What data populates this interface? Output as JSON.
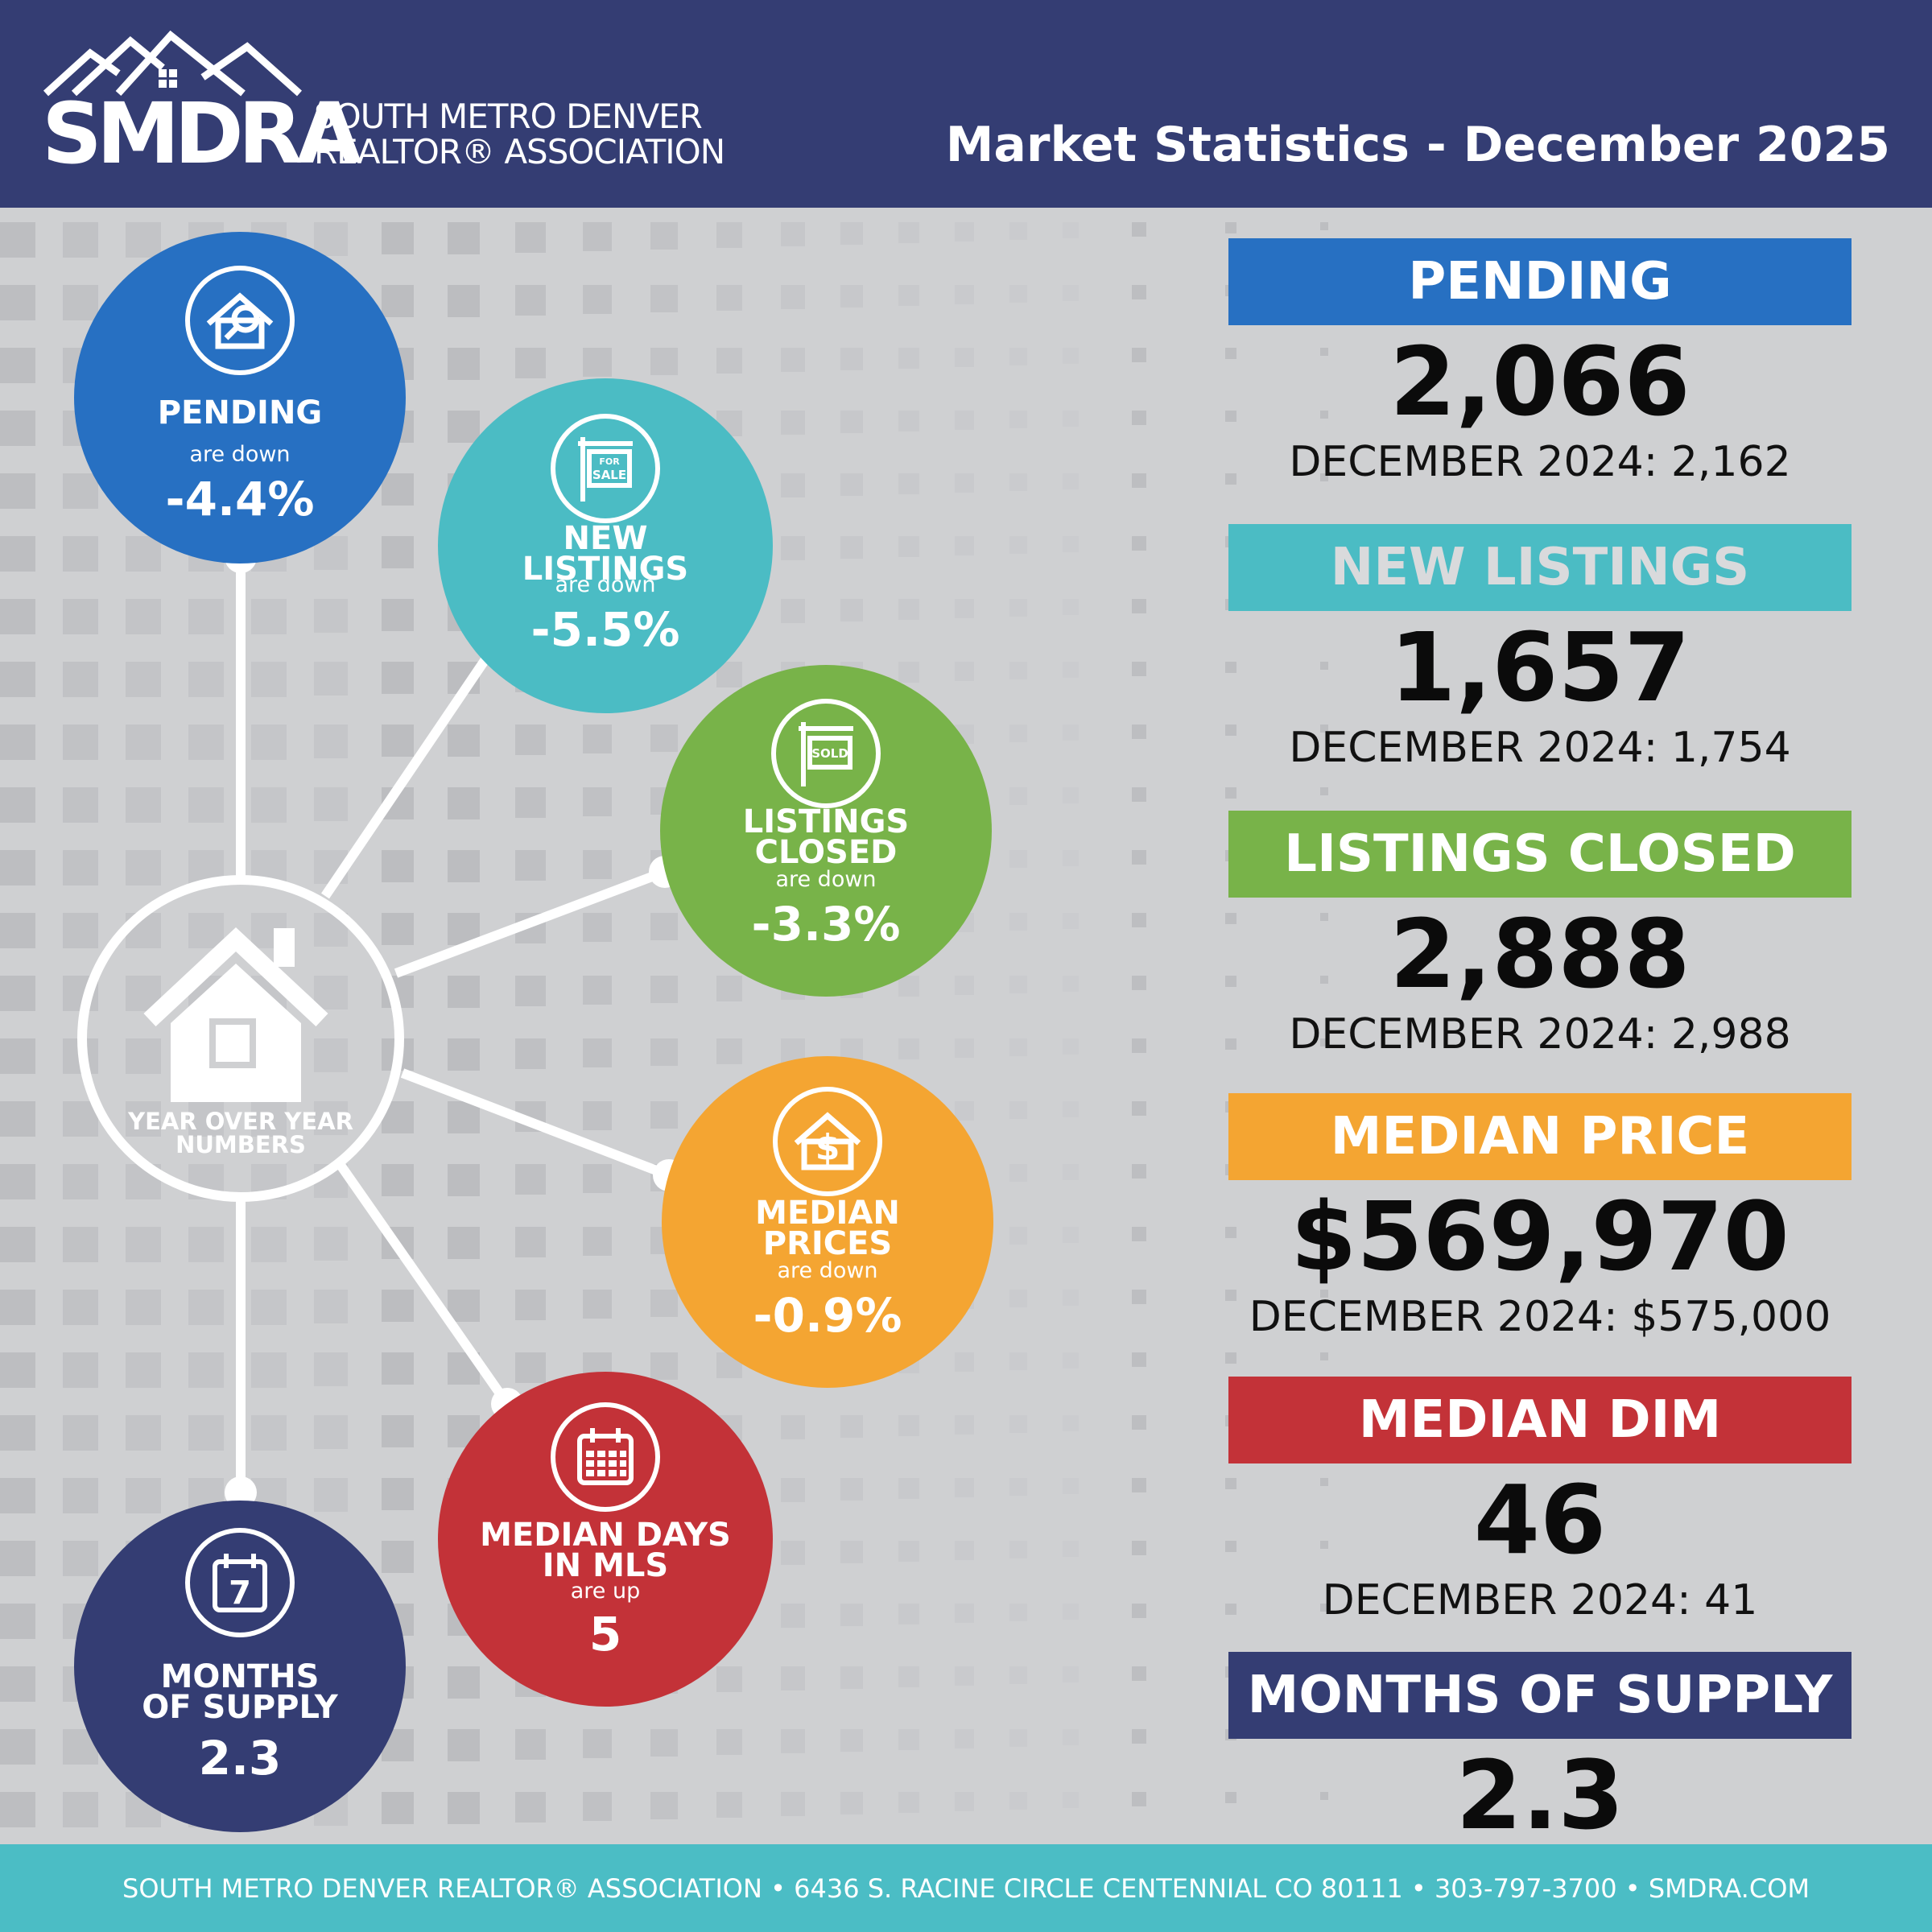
{
  "header": {
    "logo_abbrev": "SMDRA",
    "logo_line1": "SOUTH METRO DENVER",
    "logo_line2": "REALTOR® ASSOCIATION",
    "title": "Market Statistics - December 2025"
  },
  "center": {
    "label": "YEAR OVER YEAR\nNUMBERS",
    "icon": "house-icon"
  },
  "bubbles": {
    "pending": {
      "title": "PENDING",
      "sub": "are down",
      "value": "-4.4%",
      "color": "#2770c2",
      "icon": "house-search-icon"
    },
    "new": {
      "title": "NEW\nLISTINGS",
      "sub": "are down",
      "value": "-5.5%",
      "color": "#4bbcc4",
      "icon": "for-sale-sign-icon",
      "icon_text_1": "FOR",
      "icon_text_2": "SALE"
    },
    "closed": {
      "title": "LISTINGS\nCLOSED",
      "sub": "are down",
      "value": "-3.3%",
      "color": "#78b349",
      "icon": "sold-sign-icon",
      "icon_text": "SOLD"
    },
    "price": {
      "title": "MEDIAN\nPRICES",
      "sub": "are down",
      "value": "-0.9%",
      "color": "#f4a532",
      "icon": "house-dollar-icon"
    },
    "dim": {
      "title": "MEDIAN DAYS\nIN MLS",
      "sub": "are up",
      "value": "5",
      "color": "#c33238",
      "icon": "calendar-icon"
    },
    "supply": {
      "title": "MONTHS\nOF SUPPLY",
      "value": "2.3",
      "color": "#343d73",
      "icon": "calendar-day-icon",
      "icon_text": "7"
    }
  },
  "stats": [
    {
      "key": "pending",
      "banner": "PENDING",
      "value": "2,066",
      "prior": "DECEMBER 2024: 2,162",
      "color": "#2770c2",
      "text_color": "#ffffff"
    },
    {
      "key": "new",
      "banner": "NEW LISTINGS",
      "value": "1,657",
      "prior": "DECEMBER 2024: 1,754",
      "color": "#4bbcc4",
      "text_color": "#d9dadc"
    },
    {
      "key": "closed",
      "banner": "LISTINGS CLOSED",
      "value": "2,888",
      "prior": "DECEMBER 2024: 2,988",
      "color": "#78b349",
      "text_color": "#ffffff"
    },
    {
      "key": "price",
      "banner": "MEDIAN PRICE",
      "value": "$569,970",
      "prior": "DECEMBER 2024: $575,000",
      "color": "#f4a532",
      "text_color": "#ffffff"
    },
    {
      "key": "dim",
      "banner": "MEDIAN DIM",
      "value": "46",
      "prior": "DECEMBER 2024: 41",
      "color": "#c33238",
      "text_color": "#ffffff"
    },
    {
      "key": "supply",
      "banner": "MONTHS OF SUPPLY",
      "value": "2.3",
      "prior": "",
      "color": "#343d73",
      "text_color": "#ffffff"
    }
  ],
  "footer": {
    "text": "SOUTH METRO DENVER REALTOR® ASSOCIATION  •  6436 S. RACINE CIRCLE CENTENNIAL CO 80111  •   303-797-3700  •  SMDRA.COM",
    "color": "#4bbdc5"
  }
}
